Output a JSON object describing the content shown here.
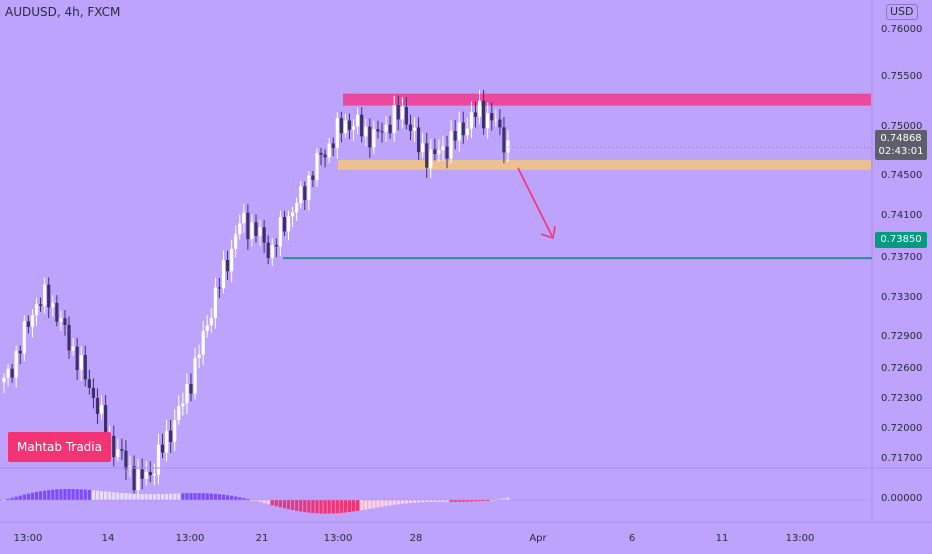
{
  "header": {
    "title": "AUDUSD, 4h, FXCM",
    "currency": "USD"
  },
  "branding": {
    "badge": "Mahtab Tradia"
  },
  "chart_data": {
    "type": "candlestick",
    "symbol": "AUDUSD",
    "timeframe": "4h",
    "source": "FXCM",
    "y_ticks": [
      "0.76000",
      "0.75500",
      "0.75000",
      "0.74500",
      "0.74100",
      "0.73700",
      "0.73300",
      "0.72900",
      "0.72600",
      "0.72300",
      "0.72000",
      "0.71700"
    ],
    "x_ticks": [
      "13:00",
      "14",
      "13:00",
      "21",
      "13:00",
      "28",
      "Apr",
      "6",
      "11",
      "13:00"
    ],
    "indicator_tick": "0.00000",
    "current_price": {
      "value": "0.74868",
      "countdown": "02:43:01",
      "numeric": 0.74868
    },
    "target_level": {
      "value": "0.73850",
      "numeric": 0.7385,
      "color": "#2a8c94"
    },
    "resistance_zone": {
      "low": 0.7525,
      "high": 0.7536,
      "color": "#f2398c"
    },
    "support_zone": {
      "low": 0.7466,
      "high": 0.7475,
      "color": "#f5c77d"
    },
    "candle_close_estimates": [
      0.727,
      0.73,
      0.734,
      0.735,
      0.732,
      0.729,
      0.726,
      0.722,
      0.72,
      0.718,
      0.719,
      0.722,
      0.725,
      0.729,
      0.734,
      0.738,
      0.742,
      0.741,
      0.739,
      0.742,
      0.744,
      0.747,
      0.749,
      0.751,
      0.7505,
      0.7495,
      0.751,
      0.752,
      0.7485,
      0.7478,
      0.749,
      0.7505,
      0.752,
      0.7512,
      0.7487
    ],
    "colors": {
      "up": "#ffffff",
      "down": "#3d2f6e",
      "background": "#bda3fb",
      "oscillator_up": "#7c4dff",
      "oscillator_down": "#f23474"
    }
  }
}
